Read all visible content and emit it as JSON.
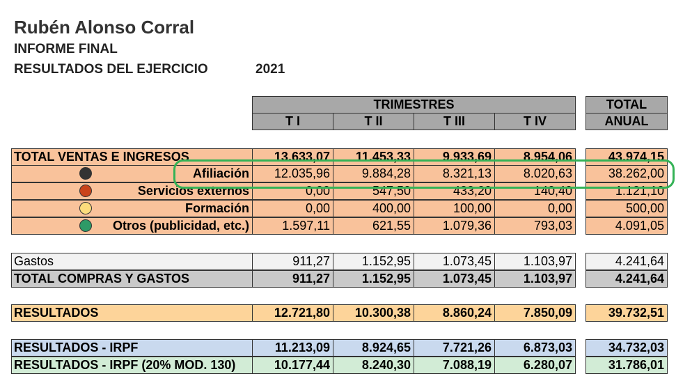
{
  "header": {
    "name": "Rubén Alonso Corral",
    "report": "INFORME FINAL",
    "results_label": "RESULTADOS DEL EJERCICIO",
    "year": "2021"
  },
  "columns": {
    "group": "TRIMESTRES",
    "quarters": [
      "T I",
      "T II",
      "T III",
      "T IV"
    ],
    "total_line1": "TOTAL",
    "total_line2": "ANUAL"
  },
  "rows": {
    "ventas": {
      "label": "TOTAL VENTAS E INGRESOS",
      "values": [
        "13.633,07",
        "11.453,33",
        "9.933,69",
        "8.954,06"
      ],
      "total": "43.974,15"
    },
    "afiliacion": {
      "label": "Afiliación",
      "values": [
        "12.035,96",
        "9.884,28",
        "8.321,13",
        "8.020,63"
      ],
      "total": "38.262,00"
    },
    "servicios": {
      "label": "Servicios externos",
      "values": [
        "0,00",
        "547,50",
        "433,20",
        "140,40"
      ],
      "total": "1.121,10"
    },
    "formacion": {
      "label": "Formación",
      "values": [
        "0,00",
        "400,00",
        "100,00",
        "0,00"
      ],
      "total": "500,00"
    },
    "otros": {
      "label": "Otros (publicidad, etc.)",
      "values": [
        "1.597,11",
        "621,55",
        "1.079,36",
        "793,03"
      ],
      "total": "4.091,05"
    },
    "gastos": {
      "label": "Gastos",
      "values": [
        "911,27",
        "1.152,95",
        "1.073,45",
        "1.103,97"
      ],
      "total": "4.241,64"
    },
    "compras": {
      "label": "TOTAL COMPRAS Y GASTOS",
      "values": [
        "911,27",
        "1.152,95",
        "1.073,45",
        "1.103,97"
      ],
      "total": "4.241,64"
    },
    "resultados": {
      "label": "RESULTADOS",
      "values": [
        "12.721,80",
        "10.300,38",
        "8.860,24",
        "7.850,09"
      ],
      "total": "39.732,51"
    },
    "irpf": {
      "label": "RESULTADOS - IRPF",
      "values": [
        "11.213,09",
        "8.924,65",
        "7.721,26",
        "6.873,03"
      ],
      "total": "34.732,03"
    },
    "irpf20": {
      "label": "RESULTADOS - IRPF (20% MOD. 130)",
      "values": [
        "10.177,44",
        "8.240,30",
        "7.088,19",
        "6.280,07"
      ],
      "total": "31.786,01"
    }
  },
  "colors": {
    "header_gray": "#a8a8a8",
    "salmon": "#f9c29b",
    "light_gray": "#f2f2f2",
    "mid_gray": "#c9c9c9",
    "yellow_orange": "#fdd49a",
    "light_blue": "#c9d9ee",
    "light_green": "#d2ecd6",
    "highlight_green": "#34b256",
    "dot_black": "#333333",
    "dot_red": "#c9431a",
    "dot_yellow": "#fddc7c",
    "dot_green": "#2e9a67"
  }
}
